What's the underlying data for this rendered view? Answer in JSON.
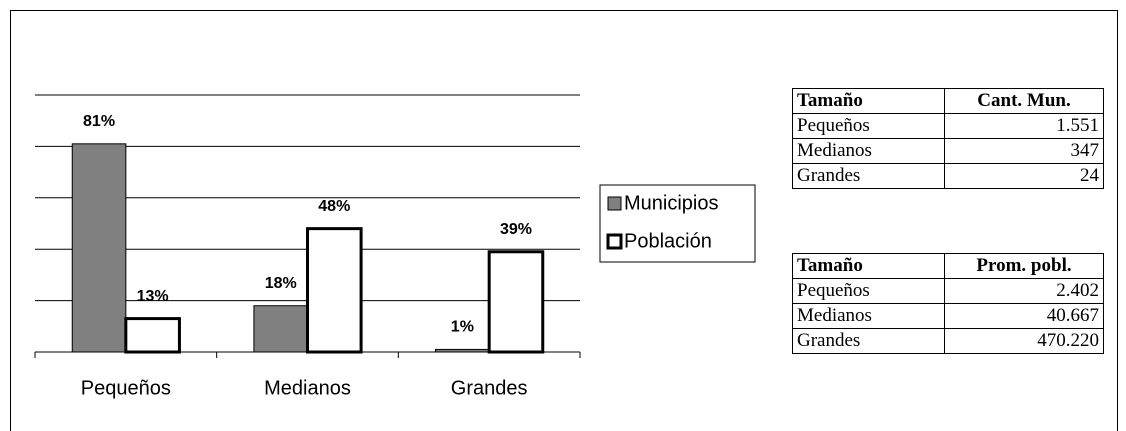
{
  "chart_data": {
    "type": "bar",
    "categories": [
      "Pequeños",
      "Medianos",
      "Grandes"
    ],
    "series": [
      {
        "name": "Municipios",
        "color": "#808080",
        "values": [
          81,
          18,
          1
        ],
        "value_labels": [
          "81%",
          "18%",
          "1%"
        ]
      },
      {
        "name": "Población",
        "color": "#ffffff",
        "values": [
          13,
          48,
          39
        ],
        "value_labels": [
          "13%",
          "48%",
          "39%"
        ]
      }
    ],
    "ylim": [
      0,
      100
    ],
    "yticks": [
      0,
      20,
      40,
      60,
      80,
      100
    ],
    "grid": true,
    "legend": "right"
  },
  "tables": [
    {
      "header": [
        "Tamaño",
        "Cant. Mun."
      ],
      "rows": [
        [
          "Pequeños",
          "1.551"
        ],
        [
          "Medianos",
          "347"
        ],
        [
          "Grandes",
          "24"
        ]
      ]
    },
    {
      "header": [
        "Tamaño",
        "Prom. pobl."
      ],
      "rows": [
        [
          "Pequeños",
          "2.402"
        ],
        [
          "Medianos",
          "40.667"
        ],
        [
          "Grandes",
          "470.220"
        ]
      ]
    }
  ]
}
